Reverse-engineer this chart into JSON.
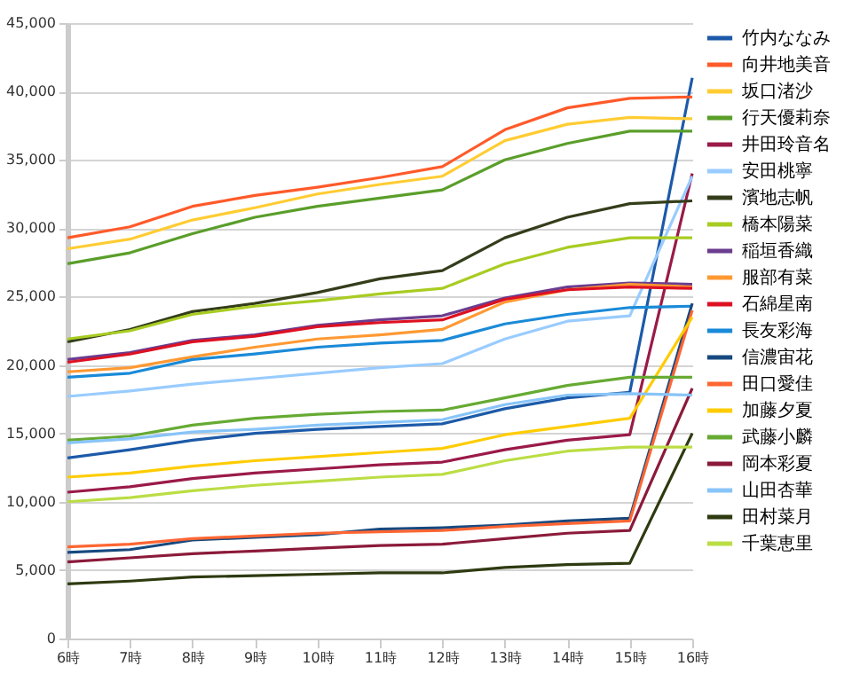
{
  "chart_data": {
    "type": "line",
    "categories": [
      "6時",
      "7時",
      "8時",
      "9時",
      "10時",
      "11時",
      "12時",
      "13時",
      "14時",
      "15時",
      "16時"
    ],
    "ylim": [
      0,
      45000
    ],
    "yticks": [
      {
        "value": 0,
        "label": "0"
      },
      {
        "value": 5000,
        "label": "5,000"
      },
      {
        "value": 10000,
        "label": "10,000"
      },
      {
        "value": 15000,
        "label": "15,000"
      },
      {
        "value": 20000,
        "label": "20,000"
      },
      {
        "value": 25000,
        "label": "25,000"
      },
      {
        "value": 30000,
        "label": "30,000"
      },
      {
        "value": 35000,
        "label": "35,000"
      },
      {
        "value": 40000,
        "label": "40,000"
      },
      {
        "value": 45000,
        "label": "45,000"
      }
    ],
    "grid": "y",
    "legend": "right",
    "marker": "none",
    "line_style": "solid",
    "series": [
      {
        "name": "竹内ななみ",
        "color": "#1c5aa8",
        "values": [
          13200,
          13800,
          14500,
          15000,
          15300,
          15500,
          15700,
          16800,
          17600,
          18000,
          41000
        ]
      },
      {
        "name": "向井地美音",
        "color": "#ff5a2a",
        "values": [
          29300,
          30100,
          31600,
          32400,
          33000,
          33700,
          34500,
          37200,
          38800,
          39500,
          39600
        ]
      },
      {
        "name": "坂口渚沙",
        "color": "#ffcc33",
        "values": [
          28500,
          29200,
          30600,
          31500,
          32500,
          33200,
          33800,
          36400,
          37600,
          38100,
          38000
        ]
      },
      {
        "name": "行天優莉奈",
        "color": "#5a9e2a",
        "values": [
          27400,
          28200,
          29600,
          30800,
          31600,
          32200,
          32800,
          35000,
          36200,
          37100,
          37100
        ]
      },
      {
        "name": "井田玲音名",
        "color": "#9a1a48",
        "values": [
          10700,
          11100,
          11700,
          12100,
          12400,
          12700,
          12900,
          13800,
          14500,
          14900,
          34000
        ]
      },
      {
        "name": "安田桃寧",
        "color": "#99ccff",
        "values": [
          17700,
          18100,
          18600,
          19000,
          19400,
          19800,
          20100,
          21900,
          23200,
          23600,
          33800
        ]
      },
      {
        "name": "濱地志帆",
        "color": "#333d1a",
        "values": [
          21700,
          22600,
          23900,
          24500,
          25300,
          26300,
          26900,
          29300,
          30800,
          31800,
          32000
        ]
      },
      {
        "name": "橋本陽菜",
        "color": "#a8cc22",
        "values": [
          21900,
          22500,
          23700,
          24300,
          24700,
          25200,
          25600,
          27400,
          28600,
          29300,
          29300
        ]
      },
      {
        "name": "稲垣香織",
        "color": "#6a3d8f",
        "values": [
          20400,
          20900,
          21800,
          22200,
          22900,
          23300,
          23600,
          24900,
          25700,
          26000,
          25900
        ]
      },
      {
        "name": "服部有菜",
        "color": "#ff9933",
        "values": [
          19500,
          19800,
          20600,
          21300,
          21900,
          22200,
          22600,
          24600,
          25500,
          25900,
          25700
        ]
      },
      {
        "name": "石綿星南",
        "color": "#dd1122",
        "values": [
          20200,
          20800,
          21700,
          22100,
          22800,
          23100,
          23300,
          24800,
          25500,
          25700,
          25600
        ]
      },
      {
        "name": "長友彩海",
        "color": "#1a8ad8",
        "values": [
          19100,
          19400,
          20400,
          20800,
          21300,
          21600,
          21800,
          23000,
          23700,
          24200,
          24300
        ]
      },
      {
        "name": "信濃宙花",
        "color": "#17497f",
        "values": [
          6300,
          6500,
          7200,
          7400,
          7600,
          8000,
          8100,
          8300,
          8600,
          8800,
          24500
        ]
      },
      {
        "name": "田口愛佳",
        "color": "#ff6633",
        "values": [
          6700,
          6900,
          7300,
          7500,
          7700,
          7800,
          7900,
          8200,
          8400,
          8600,
          24000
        ]
      },
      {
        "name": "加藤夕夏",
        "color": "#ffcc00",
        "values": [
          11800,
          12100,
          12600,
          13000,
          13300,
          13600,
          13900,
          14900,
          15500,
          16100,
          23500
        ]
      },
      {
        "name": "武藤小麟",
        "color": "#66aa33",
        "values": [
          14500,
          14800,
          15600,
          16100,
          16400,
          16600,
          16700,
          17600,
          18500,
          19100,
          19100
        ]
      },
      {
        "name": "岡本彩夏",
        "color": "#8b1a3a",
        "values": [
          5600,
          5900,
          6200,
          6400,
          6600,
          6800,
          6900,
          7300,
          7700,
          7900,
          18300
        ]
      },
      {
        "name": "山田杏華",
        "color": "#88c4f8",
        "values": [
          14300,
          14600,
          15100,
          15300,
          15600,
          15800,
          16000,
          17100,
          17800,
          17900,
          17800
        ]
      },
      {
        "name": "田村菜月",
        "color": "#2e3a10",
        "values": [
          4000,
          4200,
          4500,
          4600,
          4700,
          4800,
          4800,
          5200,
          5400,
          5500,
          15000
        ]
      },
      {
        "name": "千葉恵里",
        "color": "#bbdd44",
        "values": [
          10000,
          10300,
          10800,
          11200,
          11500,
          11800,
          12000,
          13000,
          13700,
          14000,
          14000
        ]
      }
    ]
  }
}
